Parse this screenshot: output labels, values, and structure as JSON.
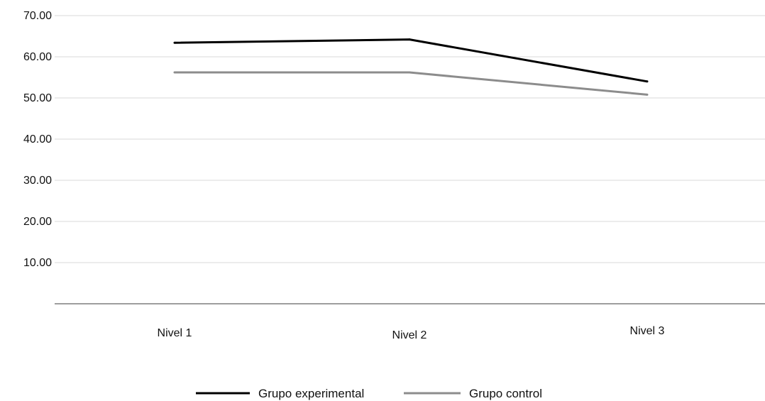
{
  "chart_data": {
    "type": "line",
    "categories": [
      "Nivel 1",
      "Nivel 2",
      "Nivel 3"
    ],
    "series": [
      {
        "name": "Grupo experimental",
        "values": [
          63.4,
          64.2,
          54.0
        ],
        "color": "#000000"
      },
      {
        "name": "Grupo control",
        "values": [
          56.2,
          56.2,
          50.8
        ],
        "color": "#8c8c8c"
      }
    ],
    "y_ticks": [
      "10.00",
      "20.00",
      "30.00",
      "40.00",
      "50.00",
      "60.00",
      "70.00"
    ],
    "ylim": [
      0,
      70
    ],
    "grid": true,
    "legend_position": "bottom-center",
    "gridline_color": "#d9d9d9",
    "axis_color": "#7f7f7f"
  }
}
